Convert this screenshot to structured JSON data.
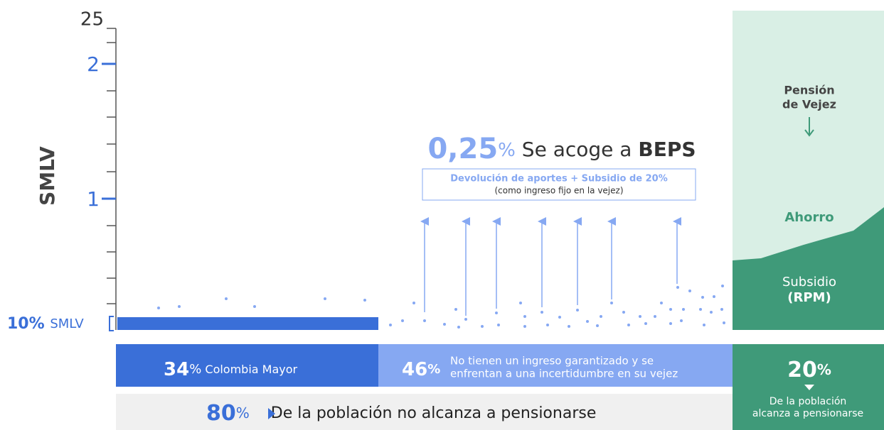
{
  "axis": {
    "ticks": [
      "25",
      "2",
      "1"
    ],
    "label": "SMLV",
    "base": {
      "number": "10%",
      "unit": "SMLV"
    }
  },
  "beps": {
    "number": "0,25",
    "unit": "%",
    "text": "Se acoge a",
    "strong": "BEPS",
    "box_line1": "Devolución de aportes + Subsidio de 20%",
    "box_line2": "(como ingreso fijo en la vejez)"
  },
  "panel": {
    "title_line1": "Pensión",
    "title_line2": "de Vejez",
    "ahorro": "Ahorro",
    "subsidio": "Subsidio",
    "rpm": "(RPM)"
  },
  "bars": [
    {
      "number": "34",
      "unit": "%",
      "text": "Colombia Mayor"
    },
    {
      "number": "46",
      "unit": "%",
      "line1": "No tienen un ingreso garantizado y se",
      "line2": "enfrentan a una incertidumbre en su vejez"
    },
    {
      "number": "20",
      "unit": "%",
      "line1": "De la población",
      "line2": "alcanza a pensionarse"
    }
  ],
  "footer": {
    "number": "80",
    "unit": "%",
    "text": "De la población no alcanza a pensionarse"
  }
}
